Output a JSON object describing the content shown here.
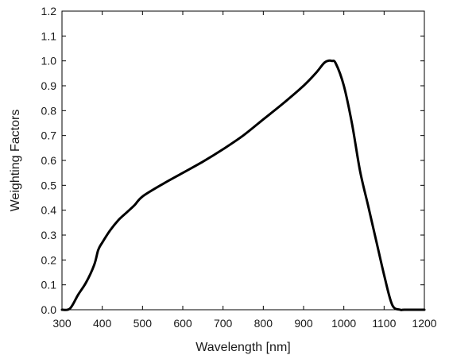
{
  "chart_data": {
    "type": "line",
    "xlabel": "Wavelength [nm]",
    "ylabel": "Weighting Factors",
    "xlim": [
      300,
      1200
    ],
    "ylim": [
      0.0,
      1.2
    ],
    "xticks": [
      300,
      400,
      500,
      600,
      700,
      800,
      900,
      1000,
      1100,
      1200
    ],
    "yticks": [
      0.0,
      0.1,
      0.2,
      0.3,
      0.4,
      0.5,
      0.6,
      0.7,
      0.8,
      0.9,
      1.0,
      1.1,
      1.2
    ],
    "xtick_labels": [
      "300",
      "400",
      "500",
      "600",
      "700",
      "800",
      "900",
      "1000",
      "1100",
      "1200"
    ],
    "ytick_labels": [
      "0.0",
      "0.1",
      "0.2",
      "0.3",
      "0.4",
      "0.5",
      "0.6",
      "0.7",
      "0.8",
      "0.9",
      "1.0",
      "1.1",
      "1.2"
    ],
    "grid": false,
    "line_color": "#000000",
    "series": [
      {
        "x": [
          300,
          320,
          340,
          360,
          380,
          390,
          400,
          420,
          440,
          460,
          480,
          500,
          550,
          600,
          650,
          700,
          750,
          800,
          850,
          900,
          930,
          950,
          960,
          970,
          980,
          1000,
          1020,
          1040,
          1060,
          1080,
          1100,
          1120,
          1140,
          1150,
          1200
        ],
        "y": [
          0.0,
          0.005,
          0.06,
          0.11,
          0.18,
          0.24,
          0.27,
          0.32,
          0.36,
          0.39,
          0.42,
          0.455,
          0.505,
          0.55,
          0.595,
          0.645,
          0.7,
          0.765,
          0.83,
          0.9,
          0.95,
          0.99,
          1.0,
          1.0,
          0.99,
          0.9,
          0.75,
          0.56,
          0.42,
          0.28,
          0.14,
          0.02,
          0.0,
          0.0,
          0.0
        ]
      }
    ]
  }
}
